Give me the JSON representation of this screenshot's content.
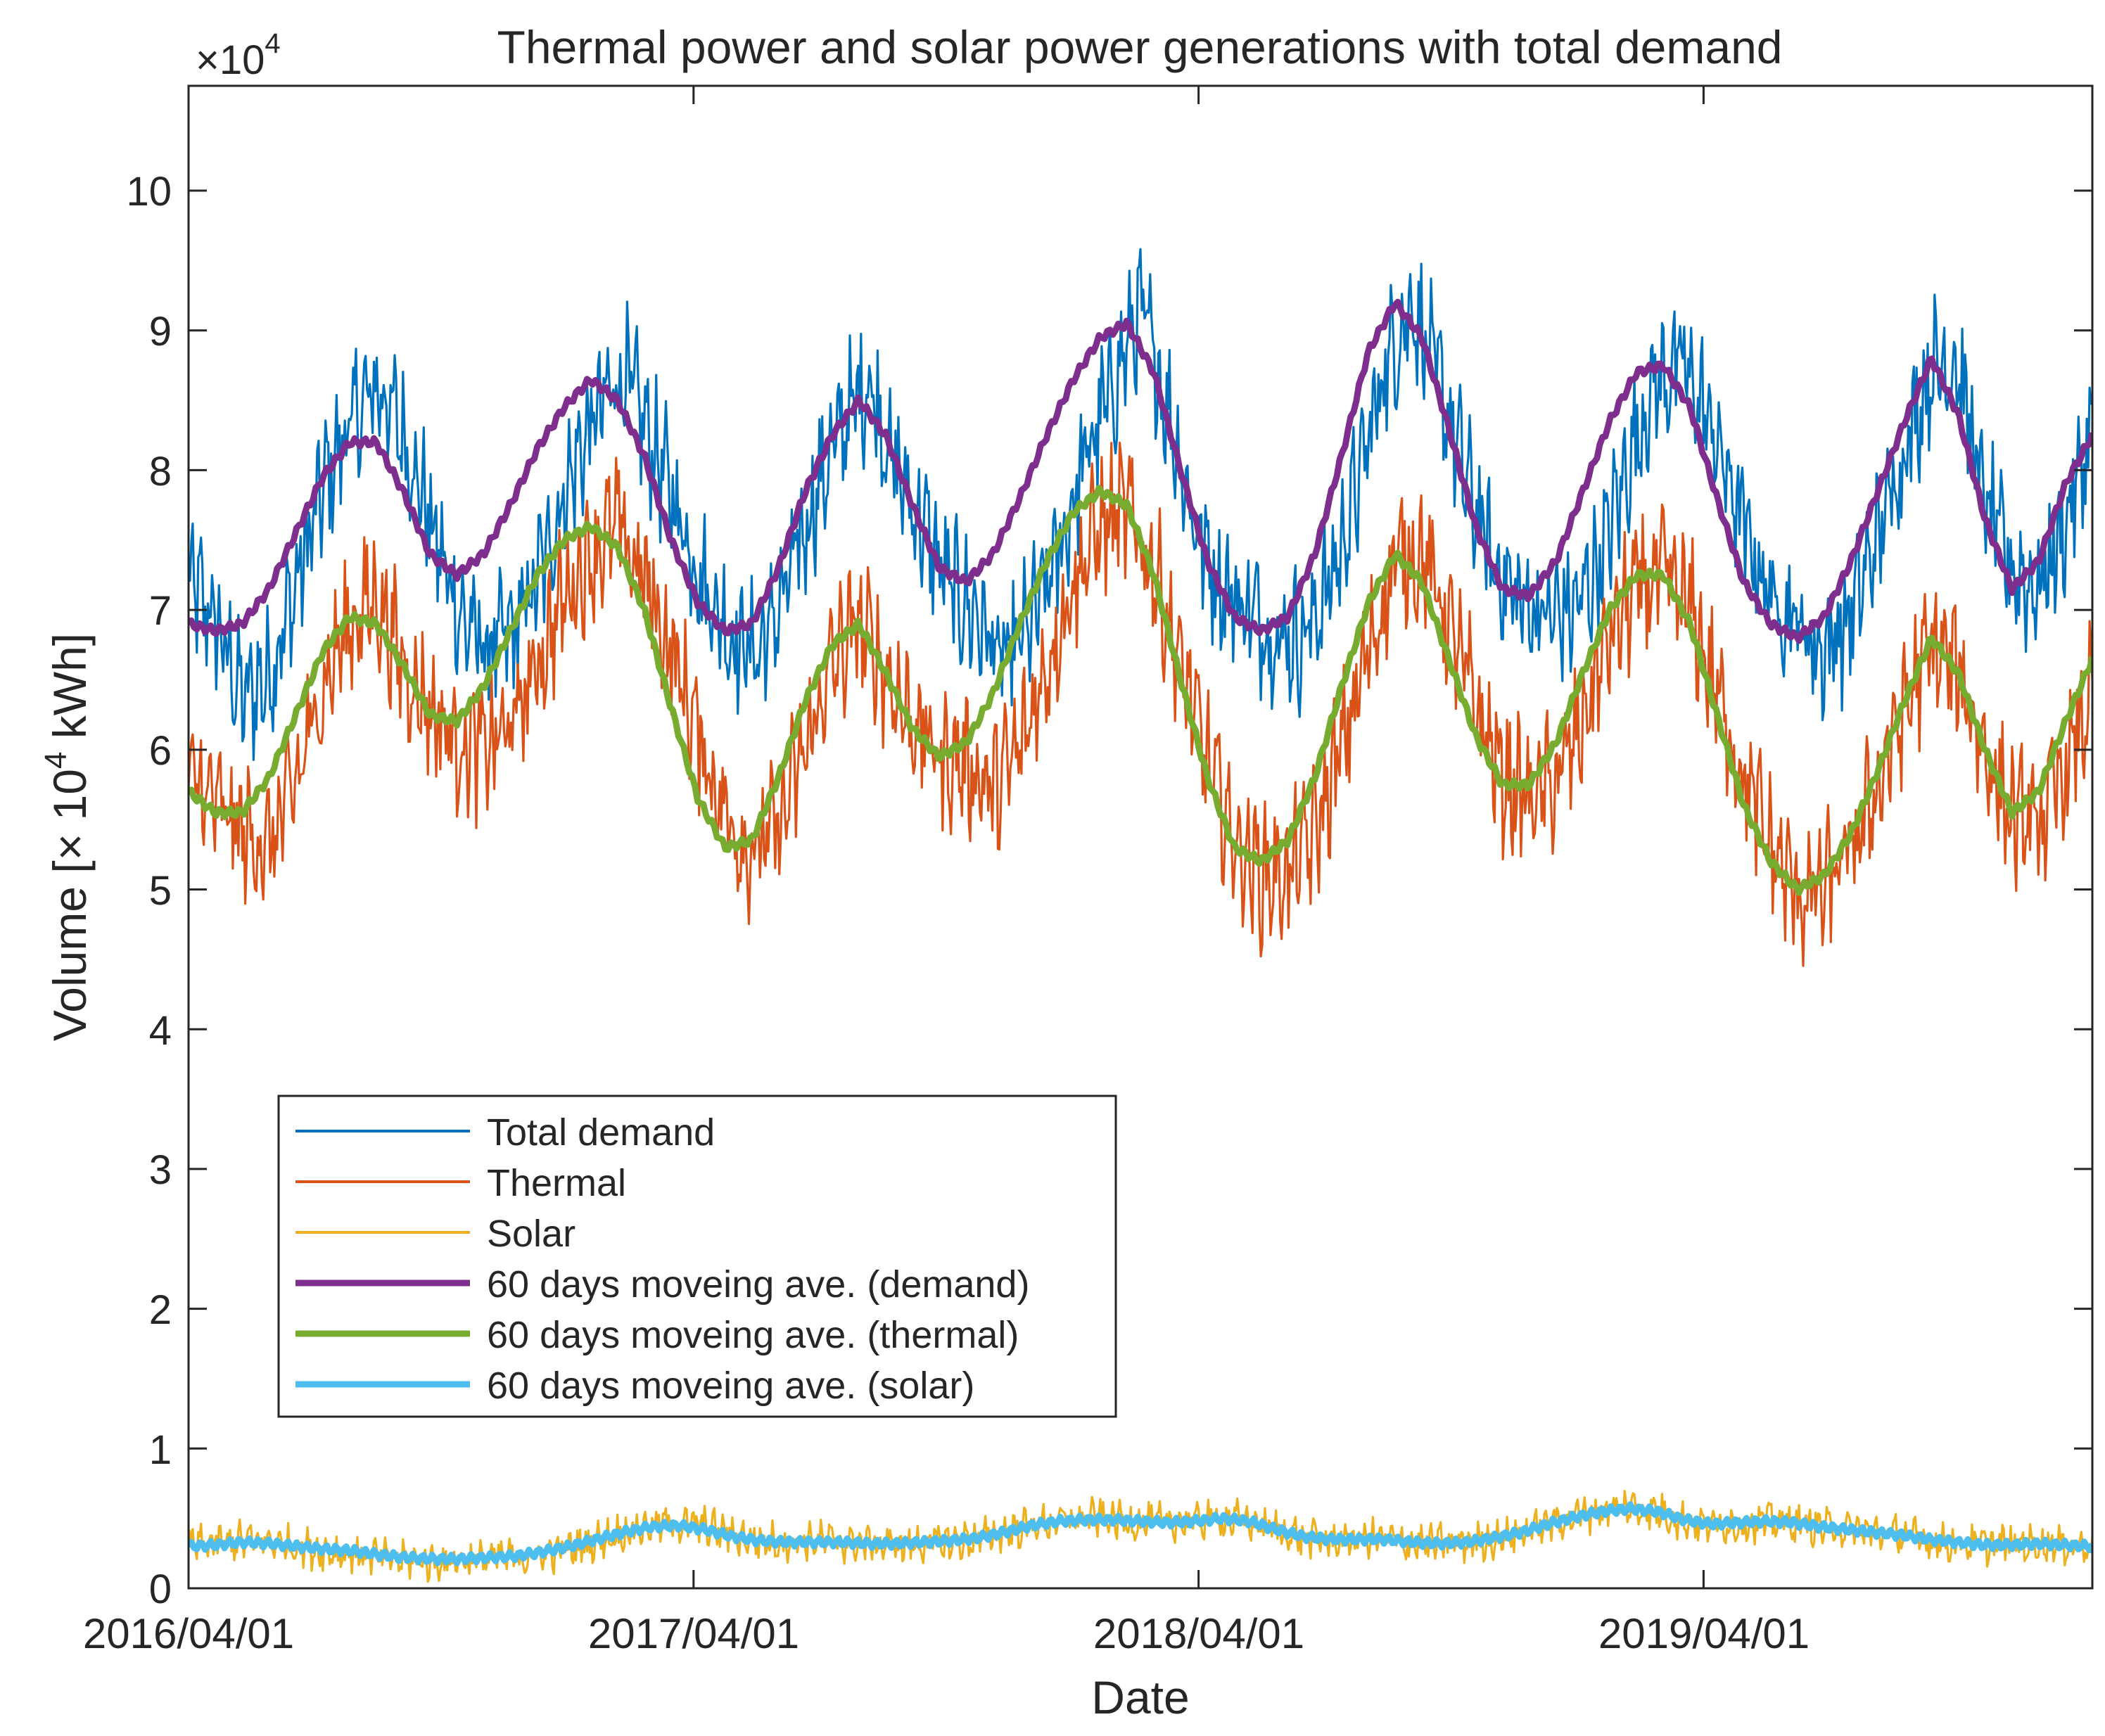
{
  "chart_data": {
    "type": "line",
    "title": "Thermal power and solar power generations with total demand",
    "xlabel": "Date",
    "ylabel_prefix": "Volume [",
    "ylabel_times": "×",
    "ylabel_base": " 10",
    "ylabel_exp": "4",
    "ylabel_suffix": " kWh]",
    "axis_multiplier": {
      "times": "×",
      "base": "10",
      "exp": "4"
    },
    "x_range_days": [
      0,
      1376
    ],
    "ylim": [
      0,
      10.75
    ],
    "y_ticks": [
      0,
      1,
      2,
      3,
      4,
      5,
      6,
      7,
      8,
      9,
      10
    ],
    "y_tick_labels": [
      "0",
      "1",
      "2",
      "3",
      "4",
      "5",
      "6",
      "7",
      "8",
      "9",
      "10"
    ],
    "x_ticks_days": [
      0,
      365,
      730,
      1095
    ],
    "x_tick_labels": [
      "2016/04/01",
      "2017/04/01",
      "2018/04/01",
      "2019/04/01"
    ],
    "grid": false,
    "legend_position": "lower-left",
    "series": [
      {
        "name": "Total demand",
        "color": "#0072BD",
        "style": "thin-daily",
        "values": [
          7.2,
          6.9,
          6.35,
          6.55,
          7.2,
          7.9,
          8.35,
          8.6,
          8.2,
          7.55,
          6.95,
          6.7,
          6.85,
          7.3,
          7.95,
          8.4,
          8.7,
          8.2,
          7.7,
          7.15,
          6.8,
          6.7,
          7.15,
          7.8,
          8.3,
          8.65,
          8.0,
          7.6,
          7.15,
          6.95,
          6.6,
          6.9,
          7.4,
          8.1,
          8.6,
          9.15,
          8.45,
          7.6,
          7.15,
          7.0,
          6.8,
          6.8,
          7.2,
          7.9,
          8.75,
          9.2,
          8.6,
          7.9,
          7.3,
          7.05,
          6.95,
          7.0,
          7.4,
          8.1,
          8.65,
          8.75,
          8.3,
          7.7,
          7.15,
          6.95,
          6.7,
          6.9,
          7.45,
          8.1,
          8.7,
          8.8,
          7.8,
          7.3,
          7.15,
          7.6,
          8.3
        ]
      },
      {
        "name": "Thermal",
        "color": "#D95319",
        "style": "thin-daily",
        "values": [
          5.8,
          5.6,
          5.4,
          5.3,
          5.75,
          6.45,
          6.9,
          7.1,
          6.6,
          6.3,
          6.05,
          6.0,
          6.15,
          6.6,
          7.1,
          7.4,
          7.6,
          7.2,
          6.7,
          6.1,
          5.55,
          5.25,
          5.45,
          6.0,
          6.6,
          6.9,
          6.55,
          6.2,
          5.95,
          5.9,
          5.7,
          6.0,
          6.6,
          7.2,
          7.6,
          7.7,
          7.3,
          6.6,
          5.9,
          5.35,
          5.1,
          5.1,
          5.4,
          6.0,
          6.7,
          7.35,
          7.4,
          6.9,
          6.3,
          5.8,
          5.65,
          5.75,
          6.2,
          6.8,
          7.15,
          7.25,
          7.0,
          6.4,
          5.8,
          5.3,
          4.95,
          5.0,
          5.25,
          5.75,
          6.3,
          6.75,
          6.55,
          6.0,
          5.5,
          5.45,
          5.85,
          6.4
        ]
      },
      {
        "name": "Solar",
        "color": "#EDB120",
        "style": "thin-daily",
        "values": [
          0.3,
          0.32,
          0.34,
          0.33,
          0.3,
          0.27,
          0.25,
          0.22,
          0.2,
          0.19,
          0.2,
          0.21,
          0.22,
          0.24,
          0.28,
          0.34,
          0.4,
          0.45,
          0.46,
          0.44,
          0.38,
          0.34,
          0.33,
          0.34,
          0.33,
          0.32,
          0.31,
          0.32,
          0.33,
          0.35,
          0.4,
          0.45,
          0.48,
          0.5,
          0.49,
          0.47,
          0.47,
          0.48,
          0.5,
          0.48,
          0.42,
          0.36,
          0.34,
          0.35,
          0.36,
          0.32,
          0.32,
          0.33,
          0.35,
          0.4,
          0.46,
          0.52,
          0.56,
          0.58,
          0.55,
          0.48,
          0.45,
          0.46,
          0.48,
          0.47,
          0.44,
          0.42,
          0.4,
          0.38,
          0.34,
          0.32,
          0.31,
          0.31,
          0.32,
          0.31,
          0.3
        ]
      },
      {
        "name": "60 days moveing ave. (demand)",
        "color": "#7E2F8E",
        "style": "thick-smooth",
        "values": [
          6.9,
          6.85,
          6.9,
          7.15,
          7.55,
          7.95,
          8.2,
          8.2,
          7.85,
          7.4,
          7.25,
          7.4,
          7.75,
          8.15,
          8.45,
          8.65,
          8.5,
          8.1,
          7.5,
          7.05,
          6.85,
          6.9,
          7.3,
          7.85,
          8.25,
          8.5,
          8.25,
          7.75,
          7.3,
          7.2,
          7.4,
          7.8,
          8.25,
          8.65,
          8.95,
          9.05,
          8.7,
          8.0,
          7.35,
          6.95,
          6.85,
          6.95,
          7.4,
          8.1,
          8.85,
          9.2,
          8.95,
          8.3,
          7.6,
          7.15,
          7.1,
          7.35,
          7.85,
          8.35,
          8.7,
          8.75,
          8.45,
          7.8,
          7.2,
          6.9,
          6.8,
          6.95,
          7.35,
          7.85,
          8.35,
          8.8,
          8.4,
          7.65,
          7.15,
          7.35,
          7.9,
          8.25
        ]
      },
      {
        "name": "60 days moveing ave. (thermal)",
        "color": "#77AC30",
        "style": "thick-smooth",
        "values": [
          5.7,
          5.55,
          5.55,
          5.8,
          6.25,
          6.7,
          6.95,
          6.9,
          6.6,
          6.25,
          6.2,
          6.45,
          6.85,
          7.25,
          7.5,
          7.6,
          7.45,
          7.0,
          6.3,
          5.65,
          5.3,
          5.35,
          5.8,
          6.35,
          6.75,
          6.9,
          6.55,
          6.15,
          5.95,
          6.05,
          6.4,
          6.9,
          7.35,
          7.7,
          7.85,
          7.75,
          7.25,
          6.5,
          5.8,
          5.3,
          5.2,
          5.35,
          5.8,
          6.45,
          7.05,
          7.4,
          7.2,
          6.65,
          6.1,
          5.75,
          5.75,
          6.05,
          6.55,
          7.0,
          7.25,
          7.25,
          6.9,
          6.25,
          5.6,
          5.2,
          5.0,
          5.1,
          5.4,
          5.85,
          6.35,
          6.8,
          6.55,
          6.0,
          5.55,
          5.7,
          6.2,
          6.65
        ]
      },
      {
        "name": "60 days moveing ave. (solar)",
        "color": "#4DBEEE",
        "style": "thick-smooth",
        "values": [
          0.3,
          0.31,
          0.33,
          0.32,
          0.3,
          0.28,
          0.27,
          0.24,
          0.22,
          0.21,
          0.21,
          0.22,
          0.23,
          0.26,
          0.3,
          0.35,
          0.4,
          0.44,
          0.45,
          0.42,
          0.37,
          0.34,
          0.33,
          0.33,
          0.33,
          0.32,
          0.32,
          0.33,
          0.34,
          0.36,
          0.4,
          0.45,
          0.48,
          0.49,
          0.49,
          0.48,
          0.47,
          0.48,
          0.5,
          0.48,
          0.42,
          0.37,
          0.35,
          0.35,
          0.35,
          0.33,
          0.32,
          0.33,
          0.36,
          0.4,
          0.46,
          0.51,
          0.55,
          0.57,
          0.55,
          0.49,
          0.46,
          0.47,
          0.48,
          0.47,
          0.44,
          0.42,
          0.4,
          0.38,
          0.35,
          0.33,
          0.31,
          0.31,
          0.32,
          0.31,
          0.3
        ]
      }
    ]
  }
}
